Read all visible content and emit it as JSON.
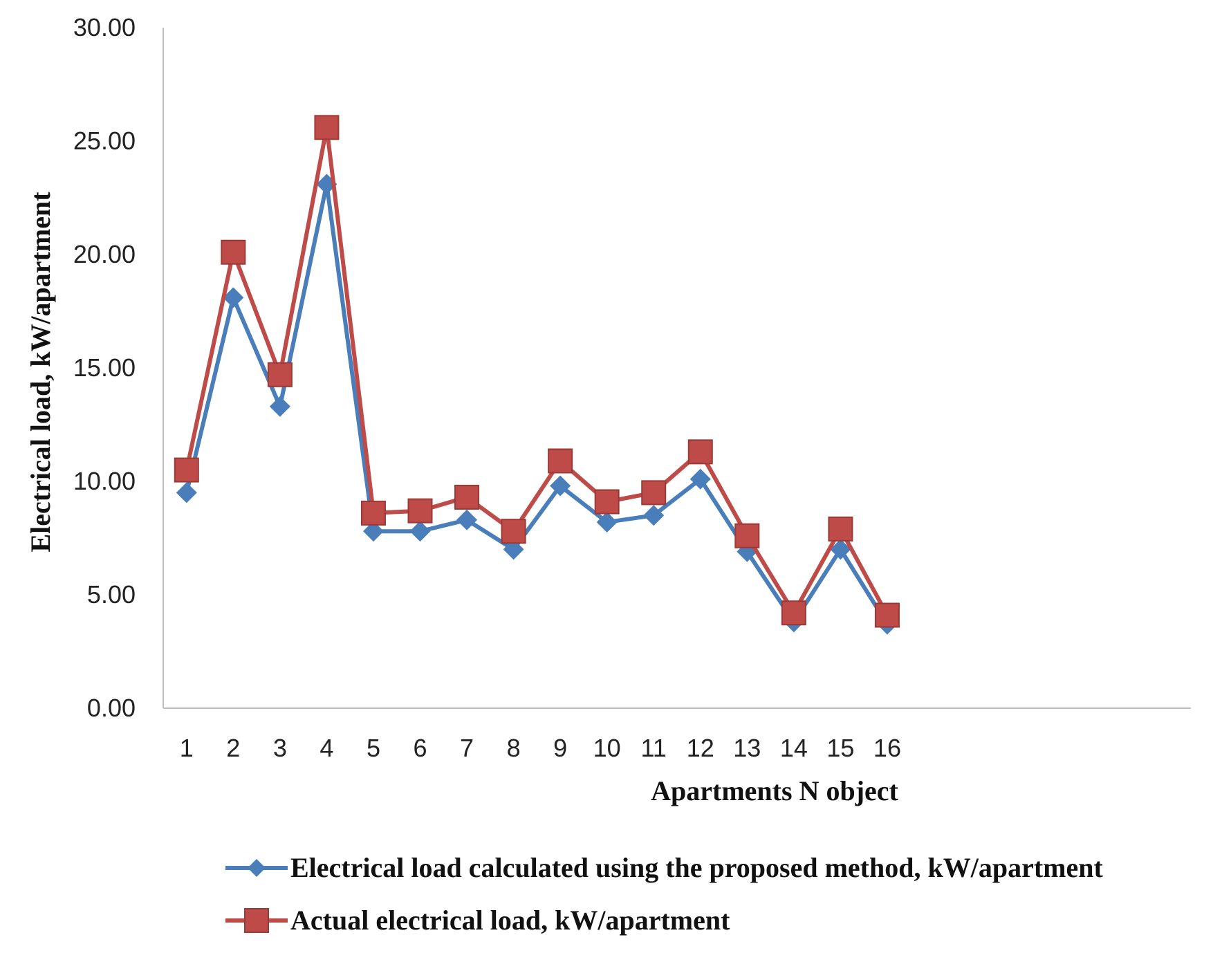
{
  "chart_data": {
    "type": "line",
    "title": "",
    "xlabel": "Apartments N object",
    "ylabel": "Electrical load, kW/apartment",
    "categories": [
      "1",
      "2",
      "3",
      "4",
      "5",
      "6",
      "7",
      "8",
      "9",
      "10",
      "11",
      "12",
      "13",
      "14",
      "15",
      "16"
    ],
    "x_slots": 22,
    "ylim": [
      0,
      30
    ],
    "yticks": [
      "0.00",
      "5.00",
      "10.00",
      "15.00",
      "20.00",
      "25.00",
      "30.00"
    ],
    "grid": false,
    "legend": "bottom",
    "series": [
      {
        "name": "Electrical load calculated using the proposed method, kW/apartment",
        "color": "#4a7ebb",
        "marker": "diamond",
        "values": [
          9.5,
          18.1,
          13.3,
          23.1,
          7.8,
          7.8,
          8.3,
          7.0,
          9.8,
          8.2,
          8.5,
          10.1,
          6.9,
          3.8,
          7.0,
          3.7
        ]
      },
      {
        "name": "Actual electrical load, kW/apartment",
        "color": "#be4b48",
        "marker": "square",
        "values": [
          10.5,
          20.1,
          14.7,
          25.6,
          8.6,
          8.7,
          9.3,
          7.8,
          10.9,
          9.1,
          9.5,
          11.3,
          7.6,
          4.2,
          7.9,
          4.1
        ]
      }
    ]
  }
}
